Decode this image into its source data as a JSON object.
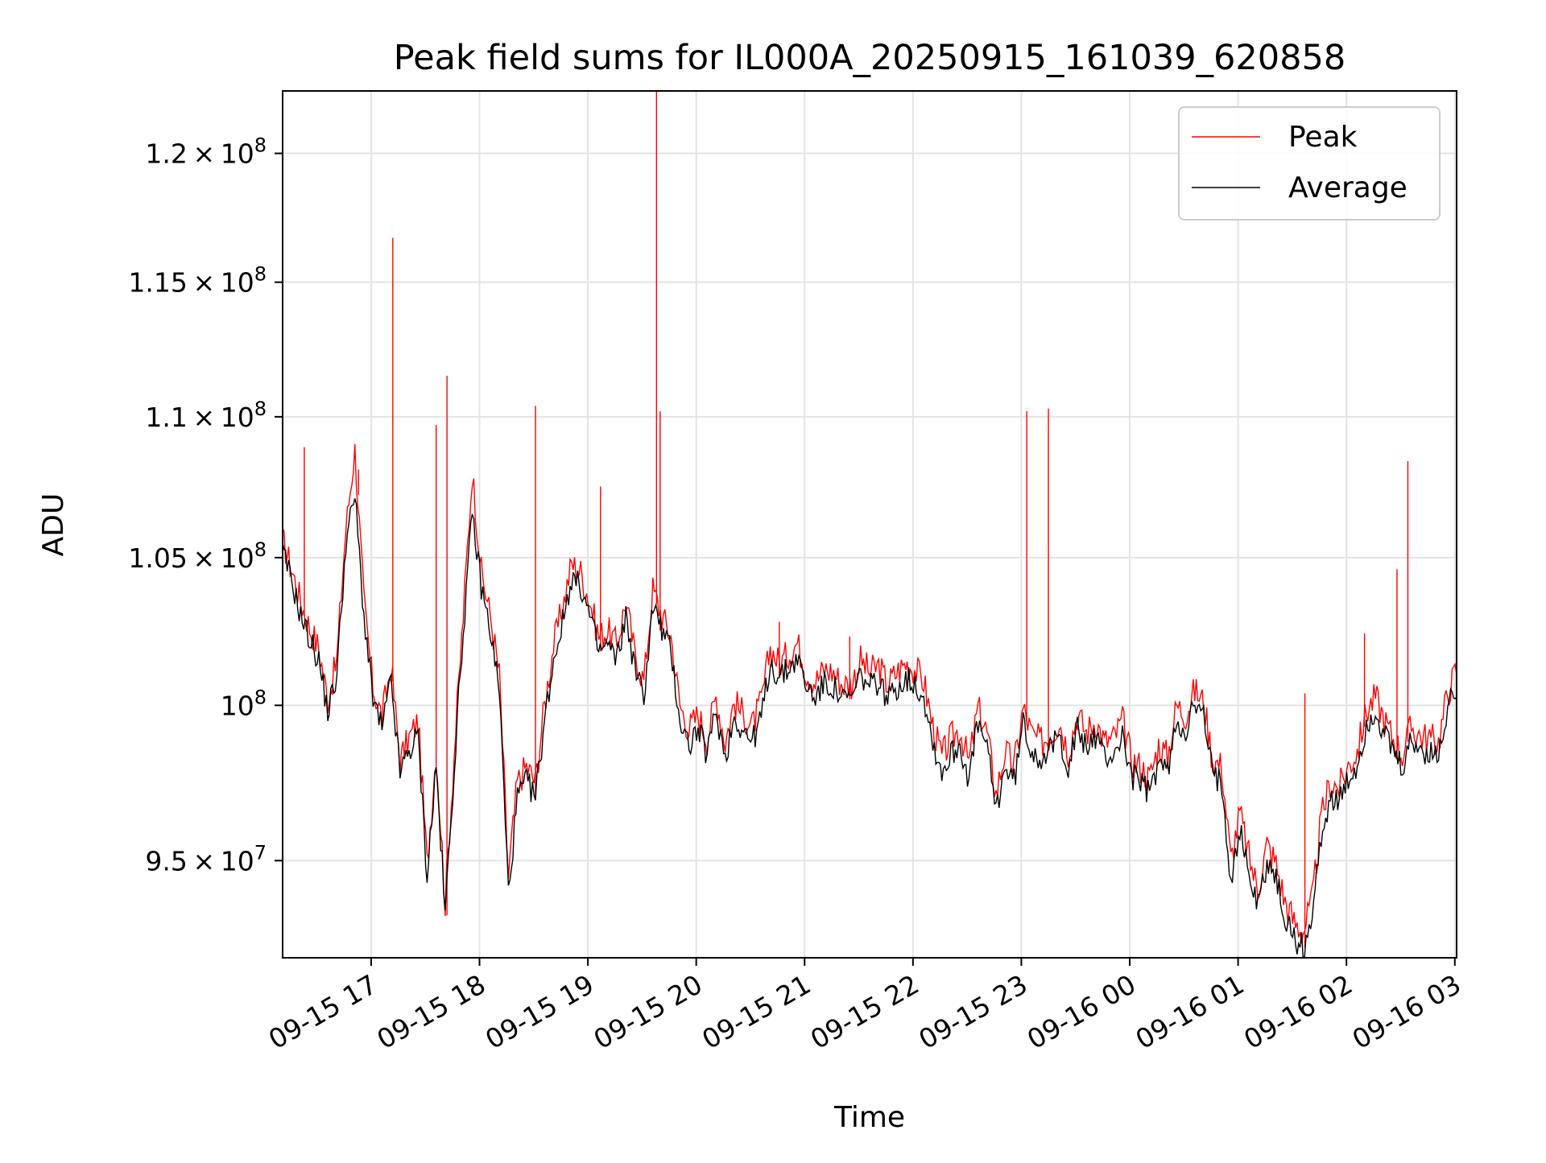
{
  "chart_data": {
    "type": "line",
    "title": "Peak field sums for IL000A_20250915_161039_620858",
    "xlabel": "Time",
    "ylabel": "ADU",
    "x_range": [
      "09-15 16:11",
      "09-16 03:01"
    ],
    "ylim": [
      92000000,
      122500000
    ],
    "y_scale": "log",
    "grid": true,
    "legend_position": "top-right",
    "x_ticks": [
      "09-15 17",
      "09-15 18",
      "09-15 19",
      "09-15 20",
      "09-15 21",
      "09-15 22",
      "09-15 23",
      "09-16 00",
      "09-16 01",
      "09-16 02",
      "09-16 03"
    ],
    "y_ticks": [
      {
        "value": 95000000,
        "mantissa": "9.5",
        "exp": "7"
      },
      {
        "value": 100000000,
        "mantissa": "",
        "exp": "8"
      },
      {
        "value": 105000000,
        "mantissa": "1.05",
        "exp": "8"
      },
      {
        "value": 110000000,
        "mantissa": "1.1",
        "exp": "8"
      },
      {
        "value": 115000000,
        "mantissa": "1.15",
        "exp": "8"
      },
      {
        "value": 120000000,
        "mantissa": "1.2",
        "exp": "8"
      }
    ],
    "series": [
      {
        "name": "Peak",
        "color": "#ff0000"
      },
      {
        "name": "Average",
        "color": "#000000"
      }
    ],
    "x_start": "09-15 16:11",
    "x_step": "5 min",
    "average_values": [
      105.2,
      104.2,
      103.0,
      102.2,
      101.5,
      99.8,
      101.0,
      105.5,
      107.2,
      103.0,
      100.2,
      99.2,
      100.8,
      97.8,
      98.5,
      99.0,
      94.5,
      98.0,
      93.3,
      98.0,
      102.5,
      106.5,
      104.0,
      102.5,
      100.5,
      94.0,
      97.0,
      97.5,
      97.0,
      99.5,
      101.5,
      102.8,
      104.3,
      104.0,
      103.0,
      101.8,
      102.0,
      101.5,
      103.0,
      101.2,
      100.3,
      103.4,
      102.5,
      101.8,
      99.5,
      98.7,
      99.2,
      98.4,
      99.8,
      98.3,
      99.6,
      99.2,
      98.8,
      99.6,
      101.4,
      100.9,
      101.2,
      101.6,
      100.6,
      100.3,
      100.7,
      100.6,
      100.2,
      100.2,
      101.0,
      100.6,
      100.8,
      100.2,
      100.6,
      100.9,
      100.7,
      100.3,
      98.8,
      97.8,
      98.4,
      98.7,
      97.6,
      99.4,
      98.6,
      96.6,
      98.0,
      97.5,
      99.4,
      98.5,
      98.3,
      98.5,
      99.0,
      98.0,
      99.2,
      98.6,
      99.0,
      98.3,
      98.4,
      99.0,
      97.7,
      97.5,
      97.1,
      98.2,
      97.8,
      99.5,
      99.2,
      100.0,
      99.6,
      97.7,
      97.5,
      94.5,
      96.0,
      94.6,
      93.6,
      95.0,
      94.4,
      93.2,
      92.6,
      92.3,
      93.2,
      95.8,
      97.0,
      96.8,
      97.5,
      98.0,
      99.3,
      99.8,
      99.0,
      98.4,
      97.9,
      98.8,
      98.5,
      98.4,
      98.3,
      99.9,
      100.7,
      99.6,
      100.3,
      102.0,
      99.8,
      101.8,
      101.5,
      102.0,
      103.8,
      104.7,
      104.4,
      103.3,
      104.8,
      106.8,
      104.0,
      102.3,
      103.4,
      102.3,
      101.3,
      100.5,
      96.0,
      99.0,
      99.3,
      99.6,
      100.5,
      101.3,
      104.2,
      104.8,
      103.8,
      104.2,
      102.5,
      107.3,
      106.3,
      106.5,
      108.5,
      109.5,
      107.5,
      106.8,
      108.4,
      109.4,
      108.8,
      106.0,
      104.5,
      104.0,
      105.5,
      107.5,
      108.8,
      108.6,
      107.0,
      104.0,
      102.5,
      101.0,
      100.0,
      99.5,
      98.0,
      97.0,
      96.5,
      98.3,
      97.8,
      96.5,
      97.0,
      98.3,
      99.5,
      101.5,
      102.0,
      101.8,
      101.7,
      101.9,
      102.0,
      102.4,
      102.8,
      103.5,
      103.0,
      102.9,
      102.8,
      102.6,
      102.0,
      100.0,
      98.5,
      97.5,
      100.0,
      102.2,
      101.5,
      100.5,
      98.0,
      96.5,
      94.3,
      95.2,
      96.2,
      96.7,
      96.1,
      95.6,
      96.5,
      96.8,
      97.5,
      97.3,
      96.9,
      97.3,
      97.6,
      96.0,
      96.5,
      97.5,
      101.5,
      101.6,
      101.8,
      101.9,
      102.1,
      102.4,
      102.2,
      102.5,
      102.3,
      102.1,
      101.8,
      101.6,
      101.4,
      101.6,
      101.8,
      102.0,
      102.2,
      102.3,
      102.6,
      102.8,
      103.1,
      102.5,
      103.3,
      103.7,
      104.6,
      103.2,
      105.0,
      106.2,
      107.6,
      108.8,
      109.4,
      110.4,
      111.2,
      111.7,
      112.5,
      112.8,
      113.5,
      113.3,
      113.1,
      114.0,
      114.6
    ],
    "peak_values": [
      105.6,
      104.6,
      103.5,
      102.6,
      101.9,
      100.2,
      101.5,
      106.0,
      108.8,
      103.5,
      100.6,
      99.6,
      101.3,
      98.2,
      98.9,
      99.5,
      94.9,
      98.5,
      93.7,
      98.4,
      103.0,
      108.0,
      104.5,
      103.0,
      101.0,
      94.5,
      97.5,
      98.0,
      97.5,
      100.0,
      102.0,
      103.3,
      104.8,
      104.5,
      103.5,
      102.3,
      102.5,
      102.0,
      103.5,
      101.7,
      100.8,
      103.9,
      103.0,
      102.3,
      100.0,
      99.2,
      99.7,
      98.9,
      100.3,
      98.8,
      100.1,
      99.7,
      99.3,
      100.1,
      101.9,
      101.4,
      101.7,
      102.1,
      101.1,
      100.8,
      101.2,
      101.1,
      100.7,
      100.7,
      101.5,
      101.1,
      101.3,
      100.7,
      101.1,
      101.4,
      101.2,
      100.8,
      99.3,
      98.3,
      98.9,
      99.2,
      98.1,
      99.9,
      99.1,
      97.1,
      98.5,
      98.0,
      99.9,
      99.0,
      98.8,
      99.0,
      99.5,
      98.5,
      99.7,
      99.1,
      99.5,
      98.8,
      98.9,
      99.5,
      98.2,
      98.0,
      97.6,
      98.7,
      98.3,
      100.0,
      99.7,
      100.5,
      100.1,
      98.2,
      98.0,
      95.0,
      96.5,
      95.1,
      94.1,
      95.5,
      94.9,
      93.7,
      93.1,
      92.8,
      93.7,
      96.3,
      97.5,
      97.3,
      98.0,
      98.5,
      99.8,
      100.3,
      99.5,
      98.9,
      98.4,
      99.3,
      99.0,
      98.9,
      98.8,
      100.4,
      101.2,
      100.1,
      100.8,
      102.5,
      100.3,
      102.3,
      102.0,
      102.5,
      104.3,
      105.2,
      104.9,
      103.8,
      105.3,
      107.3,
      104.5,
      102.8,
      103.9,
      102.8,
      101.8,
      101.0,
      96.5,
      99.5,
      99.8,
      100.1,
      101.0,
      101.8,
      104.7,
      105.3,
      104.3,
      104.7,
      103.0,
      107.8,
      106.8,
      107.0,
      109.0,
      110.0,
      108.0,
      107.3,
      108.9,
      109.9,
      109.3,
      106.5,
      105.0,
      104.5,
      106.0,
      108.0,
      109.3,
      109.1,
      107.5,
      104.5,
      103.0,
      101.5,
      100.5,
      100.0,
      98.5,
      97.5,
      97.0,
      98.8,
      98.3,
      97.0,
      97.5,
      98.8,
      100.0,
      102.0,
      102.5,
      102.3,
      102.2,
      102.4,
      102.5,
      102.9,
      103.3,
      104.0,
      103.5,
      103.4,
      103.3,
      103.1,
      102.5,
      100.5,
      99.0,
      98.0,
      100.5,
      102.7,
      102.0,
      101.0,
      98.5,
      97.0,
      94.8,
      95.7,
      96.7,
      97.2,
      96.6,
      96.1,
      97.0,
      97.3,
      98.0,
      97.8,
      97.4,
      97.8,
      98.1,
      96.5,
      97.0,
      98.0,
      102.0,
      102.1,
      102.3,
      102.4,
      102.6,
      102.9,
      102.7,
      103.0,
      102.8,
      102.6,
      102.3,
      102.1,
      101.9,
      102.1,
      102.3,
      102.5,
      102.7,
      102.8,
      103.1,
      103.3,
      103.6,
      103.0,
      103.8,
      104.2,
      105.1,
      103.7,
      105.5,
      106.7,
      108.1,
      109.3,
      109.9,
      110.9,
      111.7,
      112.2,
      113.0,
      113.3,
      114.0,
      113.8,
      113.6,
      114.5,
      115.3
    ],
    "peak_spikes": [
      {
        "time": "09-15 16:23",
        "value": 108.9
      },
      {
        "time": "09-15 16:53",
        "value": 108.1
      },
      {
        "time": "09-15 17:12",
        "value": 116.7
      },
      {
        "time": "09-15 17:36",
        "value": 109.7
      },
      {
        "time": "09-15 17:42",
        "value": 111.5
      },
      {
        "time": "09-15 18:31",
        "value": 110.4
      },
      {
        "time": "09-15 19:07",
        "value": 107.5
      },
      {
        "time": "09-15 19:38",
        "value": 122.5
      },
      {
        "time": "09-15 19:40",
        "value": 110.2
      },
      {
        "time": "09-15 20:46",
        "value": 102.8
      },
      {
        "time": "09-15 21:25",
        "value": 102.3
      },
      {
        "time": "09-15 23:03",
        "value": 110.2
      },
      {
        "time": "09-15 23:15",
        "value": 110.3
      },
      {
        "time": "09-16 01:37",
        "value": 100.4
      },
      {
        "time": "09-16 02:10",
        "value": 102.4
      },
      {
        "time": "09-16 02:28",
        "value": 104.6
      },
      {
        "time": "09-16 02:34",
        "value": 108.4
      }
    ],
    "value_unit_scale": 1000000
  }
}
